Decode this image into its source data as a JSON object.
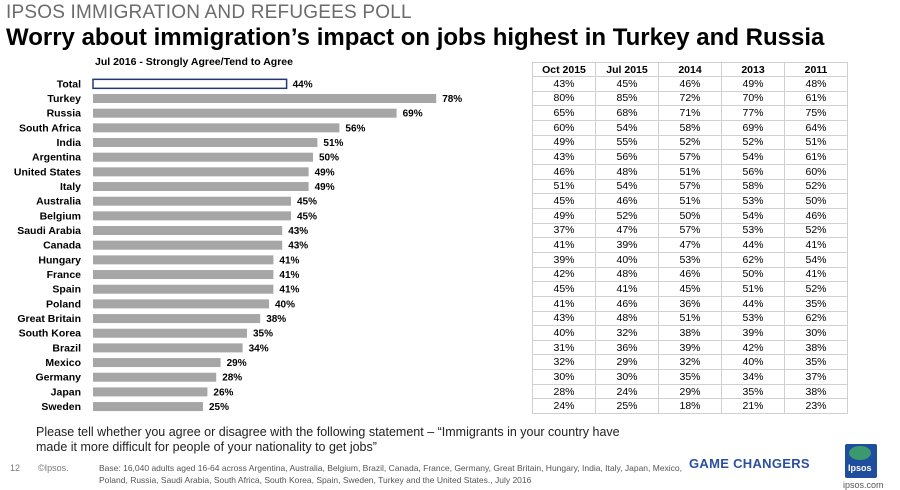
{
  "header": {
    "kicker": "IPSOS IMMIGRATION AND REFUGEES POLL",
    "title": "Worry about immigration’s impact on jobs highest in Turkey and Russia"
  },
  "chart_data": {
    "type": "bar",
    "orientation": "horizontal",
    "title": "Jul 2016 -  Strongly Agree/Tend to Agree",
    "categories": [
      "Total",
      "Turkey",
      "Russia",
      "South Africa",
      "India",
      "Argentina",
      "United States",
      "Italy",
      "Australia",
      "Belgium",
      "Saudi Arabia",
      "Canada",
      "Hungary",
      "France",
      "Spain",
      "Poland",
      "Great Britain",
      "South Korea",
      "Brazil",
      "Mexico",
      "Germany",
      "Japan",
      "Sweden"
    ],
    "values": [
      44,
      78,
      69,
      56,
      51,
      50,
      49,
      49,
      45,
      45,
      43,
      43,
      41,
      41,
      41,
      40,
      38,
      35,
      34,
      29,
      28,
      26,
      25
    ],
    "value_labels": [
      "44%",
      "78%",
      "69%",
      "56%",
      "51%",
      "50%",
      "49%",
      "49%",
      "45%",
      "45%",
      "43%",
      "43%",
      "41%",
      "41%",
      "41%",
      "40%",
      "38%",
      "35%",
      "34%",
      "29%",
      "28%",
      "26%",
      "25%"
    ],
    "highlight_category": "Total",
    "colors": {
      "bar": "#a6a6a6",
      "highlight_bar": "#ffffff",
      "highlight_border": "#1f3a73"
    },
    "xlim": [
      0,
      100
    ]
  },
  "table": {
    "columns": [
      "Oct 2015",
      "Jul 2015",
      "2014",
      "2013",
      "2011"
    ],
    "rows": [
      [
        "43%",
        "45%",
        "46%",
        "49%",
        "48%"
      ],
      [
        "80%",
        "85%",
        "72%",
        "70%",
        "61%"
      ],
      [
        "65%",
        "68%",
        "71%",
        "77%",
        "75%"
      ],
      [
        "60%",
        "54%",
        "58%",
        "69%",
        "64%"
      ],
      [
        "49%",
        "55%",
        "52%",
        "52%",
        "51%"
      ],
      [
        "43%",
        "56%",
        "57%",
        "54%",
        "61%"
      ],
      [
        "46%",
        "48%",
        "51%",
        "56%",
        "60%"
      ],
      [
        "51%",
        "54%",
        "57%",
        "58%",
        "52%"
      ],
      [
        "45%",
        "46%",
        "51%",
        "53%",
        "50%"
      ],
      [
        "49%",
        "52%",
        "50%",
        "54%",
        "46%"
      ],
      [
        "37%",
        "47%",
        "57%",
        "53%",
        "52%"
      ],
      [
        "41%",
        "39%",
        "47%",
        "44%",
        "41%"
      ],
      [
        "39%",
        "40%",
        "53%",
        "62%",
        "54%"
      ],
      [
        "42%",
        "48%",
        "46%",
        "50%",
        "41%"
      ],
      [
        "45%",
        "41%",
        "45%",
        "51%",
        "52%"
      ],
      [
        "41%",
        "46%",
        "36%",
        "44%",
        "35%"
      ],
      [
        "43%",
        "48%",
        "51%",
        "53%",
        "62%"
      ],
      [
        "40%",
        "32%",
        "38%",
        "39%",
        "30%"
      ],
      [
        "31%",
        "36%",
        "39%",
        "42%",
        "38%"
      ],
      [
        "32%",
        "29%",
        "32%",
        "40%",
        "35%"
      ],
      [
        "30%",
        "30%",
        "35%",
        "34%",
        "37%"
      ],
      [
        "28%",
        "24%",
        "29%",
        "35%",
        "38%"
      ],
      [
        "24%",
        "25%",
        "18%",
        "21%",
        "23%"
      ]
    ]
  },
  "question": "Please tell whether you agree or disagree with the following statement – “Immigrants in your country have made it more difficult for people of your nationality to get jobs”",
  "footer": {
    "page_number": "12",
    "copyright": "©Ipsos.",
    "base_note": "Base: 16,040 adults aged 16-64 across  Argentina, Australia, Belgium, Brazil, Canada, France, Germany, Great Britain, Hungary, India, Italy, Japan, Mexico, Poland, Russia, Saudi Arabia, South Africa, South Korea, Spain, Sweden, Turkey and the United States., July 2016",
    "tagline": "GAME CHANGERS",
    "logo_text": "Ipsos",
    "site": "ipsos.com"
  }
}
